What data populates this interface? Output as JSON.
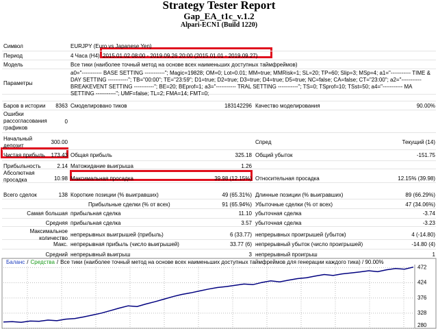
{
  "header": {
    "title": "Strategy Tester Report",
    "subtitle": "Gap_EA_t1c_v.1.2",
    "server": "Alpari-ECN1 (Build 1220)"
  },
  "rows": [
    [
      "Символ",
      "EURJPY (Euro vs Japanese Yen)"
    ],
    [
      "Период",
      "4 Часа (H4)",
      "2015.01.02 08:00 - 2019.09.26 20:00 (2015.01.01 - 2019.09.27)"
    ],
    [
      "Модель",
      "Все тики (наиболее точный метод на основе всех наименьших доступных таймфреймов)"
    ],
    [
      "Параметры",
      "a0=\"----------- BASE SETTING -----------\"; Magic=19828; OM=0; Lot=0.01; MM=true; MMRisk=1; SL=20; TP=60; Slip=3; MSp=4; a1=\"----------- TIME & DAY SETTING -----------\"; TB=\"00:00\"; TE=\"23:59\"; D1=true; D2=true; D3=true; D4=true; D5=true; NC=false; CA=false; CT=\"23:00\"; a2=\"----------- BREAKEVENT SETTING -----------\"; BE=20; BEprof=1; a3=\"----------- TRAL SETTING -----------\"; TS=0; TSprof=10; TSst=50; a4=\"----------- MA SETTING -----------\"; UMF=false; TL=2; FMA=14; FMT=0;"
    ],
    [
      "Баров в истории",
      "8363",
      "Смоделировано тиков",
      "183142296",
      "Качество моделирования",
      "90.00%"
    ],
    [
      "Ошибки рассогласования графиков",
      "0"
    ],
    [
      "Начальный депозит",
      "300.00",
      "Спред",
      "Текущий (14)"
    ],
    [
      "Чистая прибыль",
      "173.43",
      "Общая прибыль",
      "325.18",
      "Общий убыток",
      "-151.75"
    ],
    [
      "Прибыльность",
      "2.14",
      "Матожидание выигрыша",
      "1.26"
    ],
    [
      "Абсолютная просадка",
      "10.98",
      "Максимальная просадка",
      "39.98 (12.15%)",
      "Относительная просадка",
      "12.15% (39.98)"
    ],
    [
      "Всего сделок",
      "138",
      "Короткие позиции (% выигравших)",
      "49 (65.31%)",
      "Длинные позиции (% выигравших)",
      "89 (66.29%)"
    ],
    [
      "Прибыльные сделки (% от всех)",
      "91 (65.94%)",
      "Убыточные сделки (% от всех)",
      "47 (34.06%)"
    ],
    [
      "Самая большая",
      "прибыльная сделка",
      "11.10",
      "убыточная сделка",
      "-3.74"
    ],
    [
      "Средняя",
      "прибыльная сделка",
      "3.57",
      "убыточная сделка",
      "-3.23"
    ],
    [
      "Максимальное количество",
      "непрерывных выигрышей (прибыль)",
      "6 (33.77)",
      "непрерывных проигрышей (убыток)",
      "4 (-14.80)"
    ],
    [
      "Макс.",
      "непрерывная прибыль (число выигрышей)",
      "33.77 (6)",
      "непрерывный убыток (число проигрышей)",
      "-14.80 (4)"
    ],
    [
      "Средний",
      "непрерывный выигрыш",
      "3",
      "непрерывный проигрыш",
      "1"
    ]
  ],
  "graph": {
    "balance_label": "Баланс",
    "equity_label": "Средства",
    "separator": "/",
    "model_label": "Все тики (наиболее точный метод на основе всех наименьших доступных таймфреймов для генерации каждого тика) / 90.00%",
    "balance_color": "#1f3fbf",
    "equity_color": "#1a9a1a",
    "line_color": "#00007f",
    "ylim": [
      280,
      488
    ],
    "yticks": [
      472,
      424,
      376,
      328,
      280
    ],
    "balance": [
      300,
      301,
      299,
      303,
      302,
      306,
      304,
      309,
      311,
      316,
      322,
      328,
      336,
      344,
      351,
      349,
      357,
      364,
      372,
      380,
      387,
      392,
      398,
      404,
      409,
      412,
      416,
      420,
      418,
      425,
      430,
      427,
      432,
      437,
      440,
      445,
      450,
      447,
      452,
      455,
      458,
      462,
      459,
      465,
      469,
      467,
      473.43
    ]
  }
}
